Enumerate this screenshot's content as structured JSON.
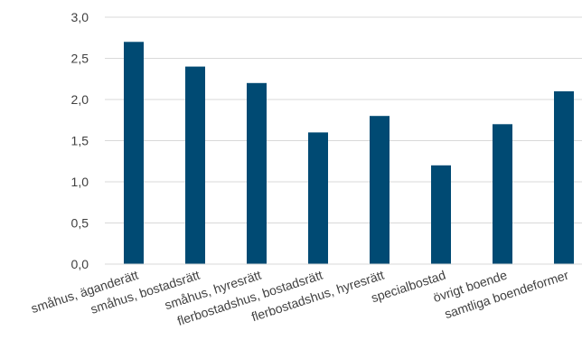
{
  "chart_data": {
    "type": "bar",
    "title": "",
    "xlabel": "",
    "ylabel": "",
    "categories": [
      "småhus, äganderätt",
      "småhus, bostadsrätt",
      "småhus, hyresrätt",
      "flerbostadshus, bostadsrätt",
      "flerbostadshus, hyresrätt",
      "specialbostad",
      "övrigt boende",
      "samtliga boendeformer"
    ],
    "values": [
      2.7,
      2.4,
      2.2,
      1.6,
      1.8,
      1.2,
      1.7,
      2.1
    ],
    "ylim": [
      0,
      3
    ],
    "yticks": [
      "0,0",
      "0,5",
      "1,0",
      "1,5",
      "2,0",
      "2,5",
      "3,0"
    ],
    "grid": true,
    "legend": "none",
    "bar_color": "#004a73"
  }
}
